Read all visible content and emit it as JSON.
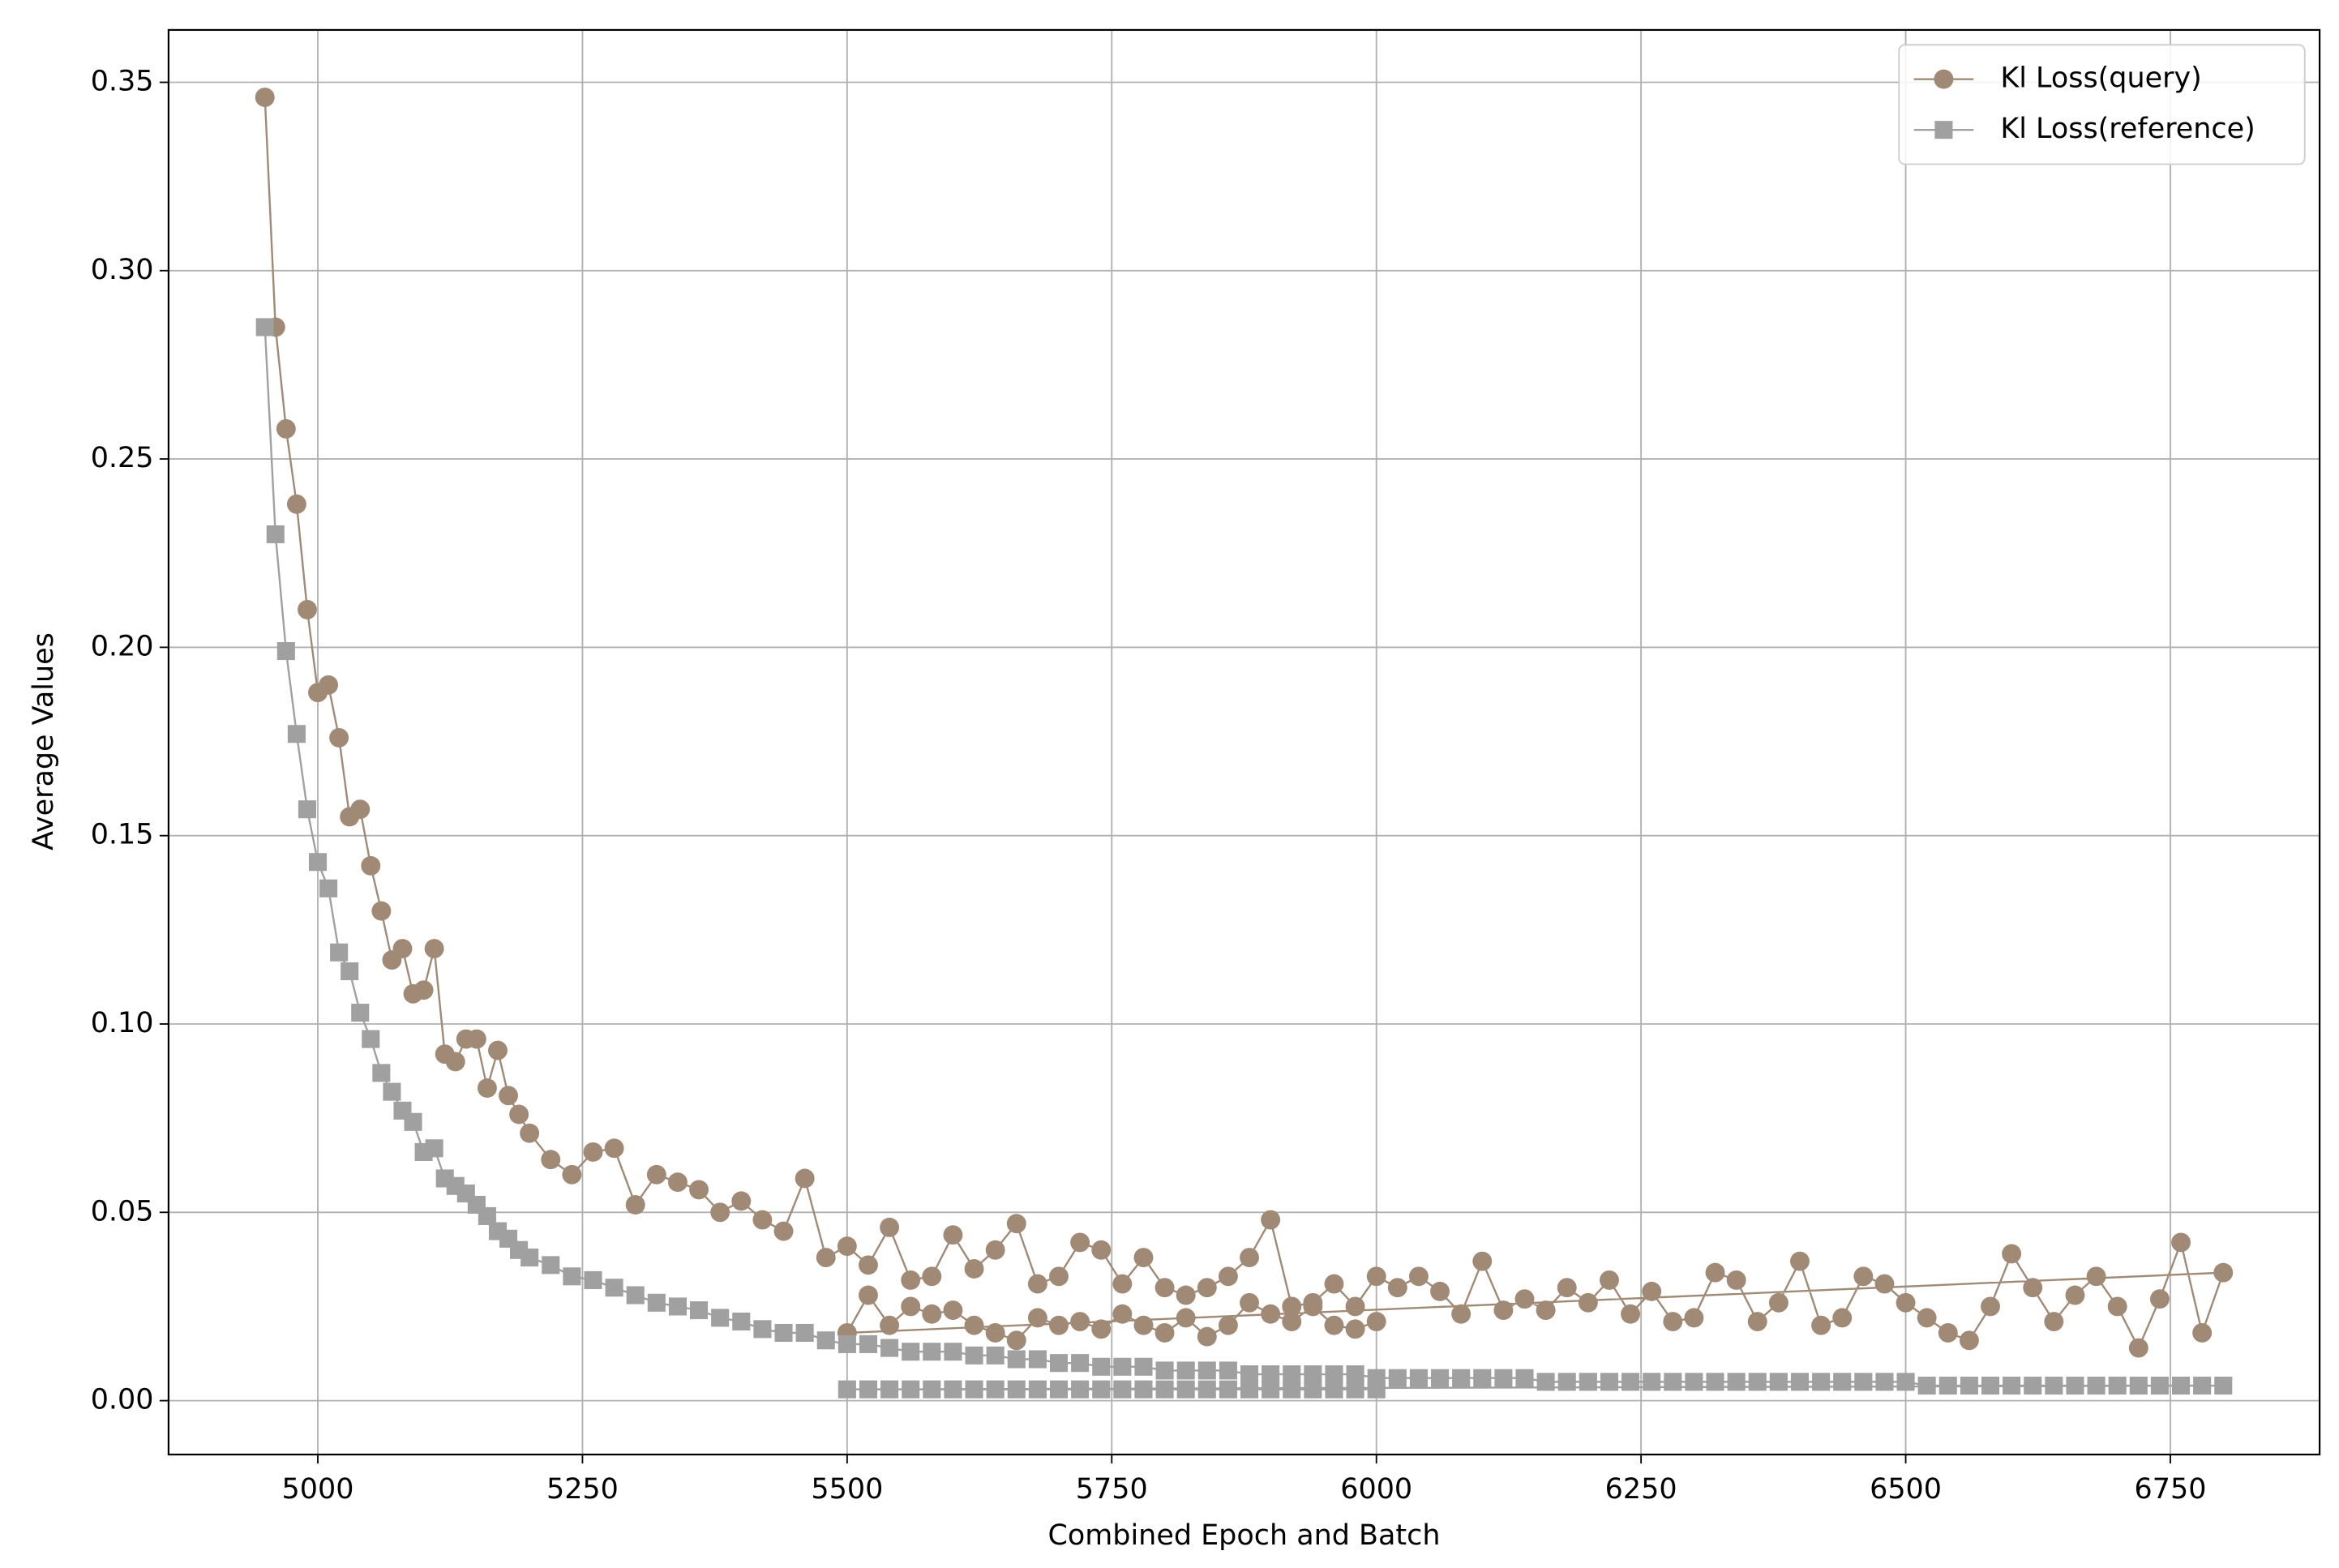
{
  "chart_data": {
    "type": "line",
    "xlabel": "Combined Epoch and Batch",
    "ylabel": "Average Values",
    "x": [
      4950,
      4960,
      4970,
      4980,
      4990,
      5000,
      5010,
      5020,
      5030,
      5040,
      5050,
      5060,
      5070,
      5080,
      5090,
      5100,
      5110,
      5120,
      5130,
      5140,
      5150,
      5160,
      5170,
      5180,
      5190,
      5200,
      5220,
      5240,
      5260,
      5280,
      5300,
      5320,
      5340,
      5360,
      5380,
      5400,
      5420,
      5440,
      5460,
      5480,
      5500,
      5520,
      5540,
      5560,
      5580,
      5600,
      5620,
      5640,
      5660,
      5680,
      5700,
      5720,
      5740,
      5760,
      5780,
      5800,
      5820,
      5840,
      5860,
      5880,
      5900,
      5920,
      5940,
      5960,
      5980,
      6000,
      6020,
      6040,
      6060,
      6080,
      6100,
      6120,
      6140,
      6160,
      6180,
      6200,
      6220,
      6240,
      6260,
      6280,
      6300,
      6320,
      6340,
      6360,
      6380,
      6400,
      6420,
      6440,
      6460,
      6480,
      6500,
      6520,
      6540,
      6560,
      6580,
      6600,
      6620,
      6640,
      6660,
      6680,
      6700,
      6720,
      6740,
      6760,
      6780,
      6800,
      5500,
      5520,
      5540,
      5560,
      5580,
      5600,
      5620,
      5640,
      5660,
      5680,
      5700,
      5720,
      5740,
      5760,
      5780,
      5800,
      5820,
      5840,
      5860,
      5880,
      5900,
      5920,
      5940,
      5960,
      5980,
      6000
    ],
    "series": [
      {
        "name": "Kl Loss(query)",
        "color": "#a08a76",
        "marker": "circle",
        "values": [
          0.346,
          0.285,
          0.258,
          0.238,
          0.21,
          0.188,
          0.19,
          0.176,
          0.155,
          0.157,
          0.142,
          0.13,
          0.117,
          0.12,
          0.108,
          0.109,
          0.12,
          0.092,
          0.09,
          0.096,
          0.096,
          0.083,
          0.093,
          0.081,
          0.076,
          0.071,
          0.064,
          0.06,
          0.066,
          0.067,
          0.052,
          0.06,
          0.058,
          0.056,
          0.05,
          0.053,
          0.048,
          0.045,
          0.059,
          0.038,
          0.041,
          0.036,
          0.046,
          0.032,
          0.033,
          0.044,
          0.035,
          0.04,
          0.047,
          0.031,
          0.033,
          0.042,
          0.04,
          0.031,
          0.038,
          0.03,
          0.028,
          0.03,
          0.033,
          0.038,
          0.048,
          0.025,
          0.026,
          0.031,
          0.025,
          0.033,
          0.03,
          0.033,
          0.029,
          0.023,
          0.037,
          0.024,
          0.027,
          0.024,
          0.03,
          0.026,
          0.032,
          0.023,
          0.029,
          0.021,
          0.022,
          0.034,
          0.032,
          0.021,
          0.026,
          0.037,
          0.02,
          0.022,
          0.033,
          0.031,
          0.026,
          0.022,
          0.018,
          0.016,
          0.025,
          0.039,
          0.03,
          0.021,
          0.028,
          0.033,
          0.025,
          0.014,
          0.027,
          0.042,
          0.018,
          0.034,
          0.018,
          0.028,
          0.02,
          0.025,
          0.023,
          0.024,
          0.02,
          0.018,
          0.016,
          0.022,
          0.02,
          0.021,
          0.019,
          0.023,
          0.02,
          0.018,
          0.022,
          0.017,
          0.02,
          0.026,
          0.023,
          0.021,
          0.025,
          0.02,
          0.019,
          0.021
        ]
      },
      {
        "name": "Kl Loss(reference)",
        "color": "#a0a0a0",
        "marker": "square",
        "values": [
          0.285,
          0.23,
          0.199,
          0.177,
          0.157,
          0.143,
          0.136,
          0.119,
          0.114,
          0.103,
          0.096,
          0.087,
          0.082,
          0.077,
          0.074,
          0.066,
          0.067,
          0.059,
          0.057,
          0.055,
          0.052,
          0.049,
          0.045,
          0.043,
          0.04,
          0.038,
          0.036,
          0.033,
          0.032,
          0.03,
          0.028,
          0.026,
          0.025,
          0.024,
          0.022,
          0.021,
          0.019,
          0.018,
          0.018,
          0.016,
          0.015,
          0.015,
          0.014,
          0.013,
          0.013,
          0.013,
          0.012,
          0.012,
          0.011,
          0.011,
          0.01,
          0.01,
          0.009,
          0.009,
          0.009,
          0.008,
          0.008,
          0.008,
          0.008,
          0.007,
          0.007,
          0.007,
          0.007,
          0.007,
          0.007,
          0.006,
          0.006,
          0.006,
          0.006,
          0.006,
          0.006,
          0.006,
          0.006,
          0.005,
          0.005,
          0.005,
          0.005,
          0.005,
          0.005,
          0.005,
          0.005,
          0.005,
          0.005,
          0.005,
          0.005,
          0.005,
          0.005,
          0.005,
          0.005,
          0.005,
          0.005,
          0.004,
          0.004,
          0.004,
          0.004,
          0.004,
          0.004,
          0.004,
          0.004,
          0.004,
          0.004,
          0.004,
          0.004,
          0.004,
          0.004,
          0.004,
          0.003,
          0.003,
          0.003,
          0.003,
          0.003,
          0.003,
          0.003,
          0.003,
          0.003,
          0.003,
          0.003,
          0.003,
          0.003,
          0.003,
          0.003,
          0.003,
          0.003,
          0.003,
          0.003,
          0.003,
          0.003,
          0.003,
          0.003,
          0.003,
          0.003,
          0.003
        ]
      }
    ],
    "xlim": [
      4859,
      6891
    ],
    "ylim": [
      -0.0143,
      0.3639
    ],
    "xticks": [
      5000,
      5250,
      5500,
      5750,
      6000,
      6250,
      6500,
      6750
    ],
    "yticks": [
      {
        "value": 0,
        "label": "0.00"
      },
      0.05,
      {
        "value": 0.1,
        "label": "0.10"
      },
      0.15,
      {
        "value": 0.2,
        "label": "0.20"
      },
      0.25,
      {
        "value": 0.3,
        "label": "0.30"
      },
      0.35
    ],
    "grid": true,
    "legend": "upper right"
  }
}
